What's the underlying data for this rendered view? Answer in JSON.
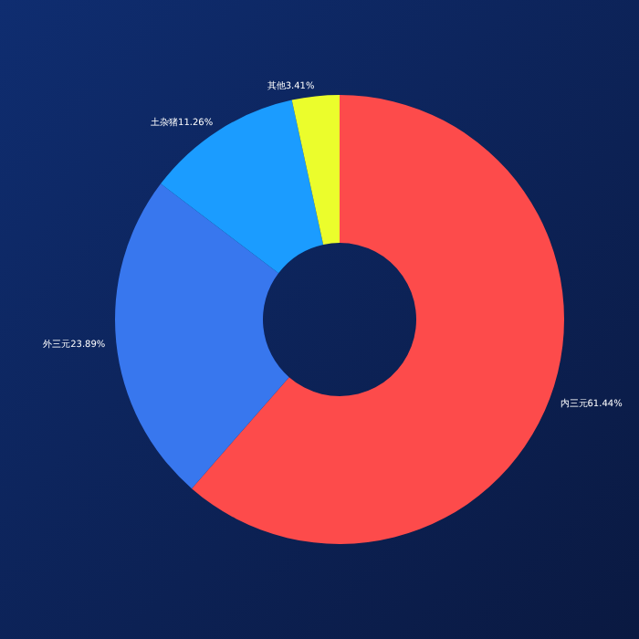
{
  "chart_data": {
    "type": "donut",
    "categories": [
      "内三元",
      "外三元",
      "土杂猪",
      "其他"
    ],
    "values": [
      61.44,
      23.89,
      11.26,
      3.41
    ],
    "value_labels": [
      "61.44%",
      "23.89%",
      "11.26%",
      "3.41%"
    ],
    "colors": [
      "#fd4b4b",
      "#3877ee",
      "#1b9cff",
      "#ebfd2c"
    ]
  }
}
